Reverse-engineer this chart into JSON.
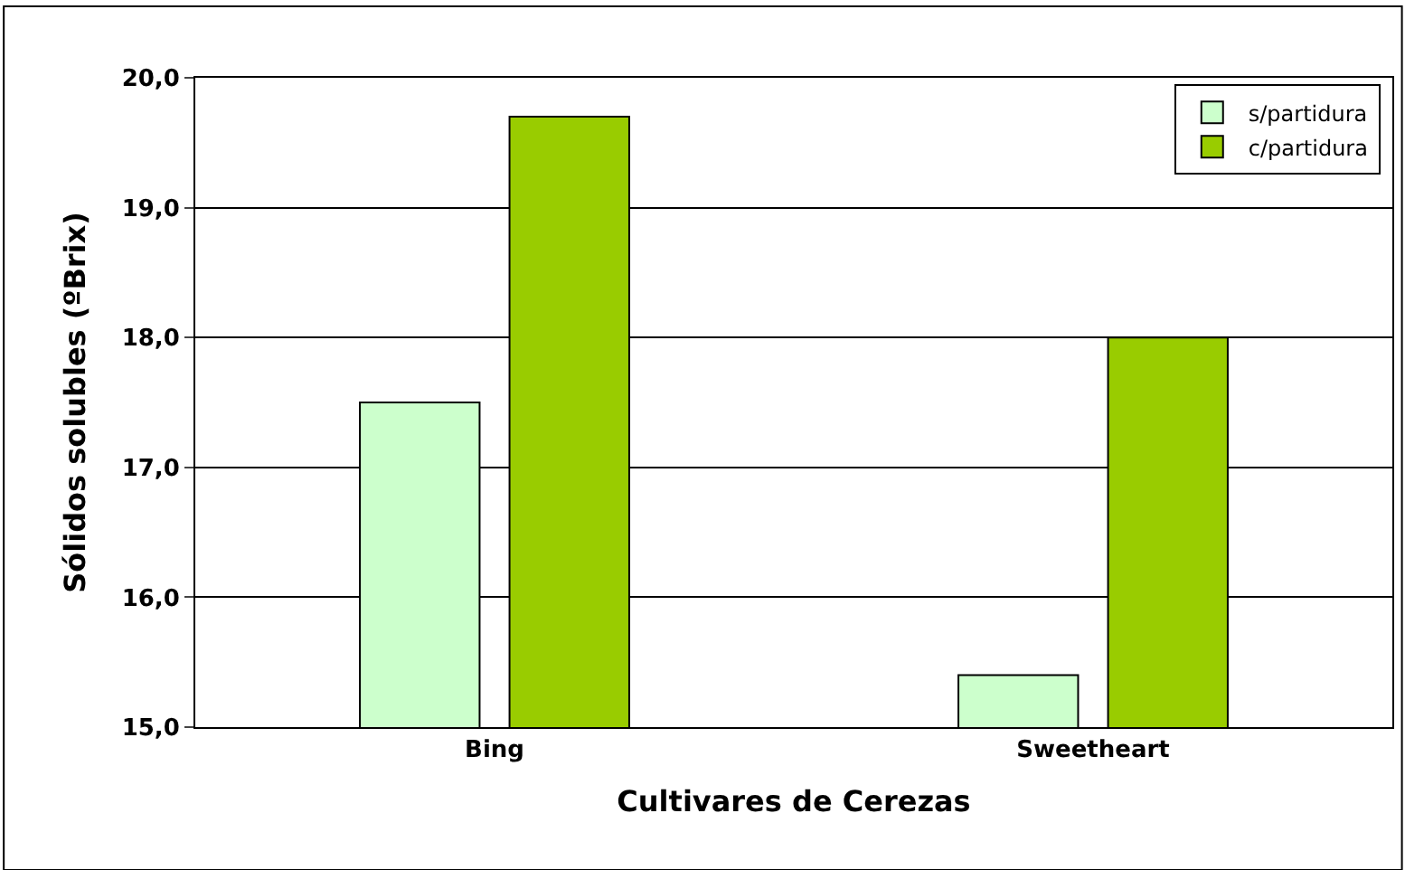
{
  "chart_data": {
    "type": "bar",
    "xlabel": "Cultivares de Cerezas",
    "ylabel": "Sólidos solubles (ºBrix)",
    "categories": [
      "Bing",
      "Sweetheart"
    ],
    "series": [
      {
        "name": "s/partidura",
        "color": "#ccffcc",
        "values": [
          17.5,
          15.4
        ]
      },
      {
        "name": "c/partidura",
        "color": "#99cc00",
        "values": [
          19.7,
          18.0
        ]
      }
    ],
    "ylim": [
      15,
      20
    ],
    "yticks": [
      {
        "value": 15,
        "label": "15,0"
      },
      {
        "value": 16,
        "label": "16,0"
      },
      {
        "value": 17,
        "label": "17,0"
      },
      {
        "value": 18,
        "label": "18,0"
      },
      {
        "value": 19,
        "label": "19,0"
      },
      {
        "value": 20,
        "label": "20,0"
      }
    ],
    "grid": "y",
    "legend": "top right"
  }
}
